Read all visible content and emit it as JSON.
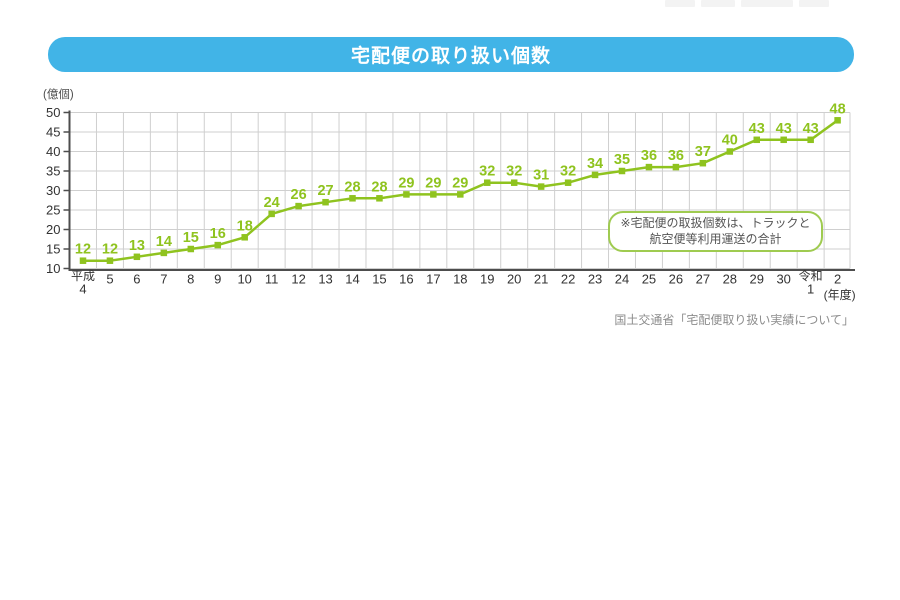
{
  "header": {
    "title": "宅配便の取り扱い個数"
  },
  "chart_data": {
    "type": "line",
    "title": "宅配便の取り扱い個数",
    "unit_label": "(億個)",
    "x_axis_suffix": "(年度)",
    "categories": [
      "平成\n4",
      "5",
      "6",
      "7",
      "8",
      "9",
      "10",
      "11",
      "12",
      "13",
      "14",
      "15",
      "16",
      "17",
      "18",
      "19",
      "20",
      "21",
      "22",
      "23",
      "24",
      "25",
      "26",
      "27",
      "28",
      "29",
      "30",
      "令和\n1",
      "2"
    ],
    "values": [
      12,
      12,
      13,
      14,
      15,
      16,
      18,
      24,
      26,
      27,
      28,
      28,
      29,
      29,
      29,
      32,
      32,
      31,
      32,
      34,
      35,
      36,
      36,
      37,
      40,
      43,
      43,
      43,
      48
    ],
    "ylim": [
      10,
      50
    ],
    "ytick_step": 5,
    "grid": true,
    "marker": "square",
    "line_color": "#8fc31f",
    "data_label_color": "#8fc31f",
    "legend": "none"
  },
  "annotation": {
    "line1": "※宅配便の取扱個数は、トラックと",
    "line2": "航空便等利用運送の合計"
  },
  "source": "国土交通省「宅配便取り扱い実績について」",
  "theme": {
    "banner_color": "#41b4e7",
    "banner_text_color": "#ffffff",
    "grid_color": "#cfcfcf",
    "axis_color": "#4d4d4d",
    "tick_text_color": "#333333",
    "annotation_border_color": "#9fcb50",
    "annotation_text_color": "#555555",
    "source_text_color": "#8c8c8c"
  }
}
